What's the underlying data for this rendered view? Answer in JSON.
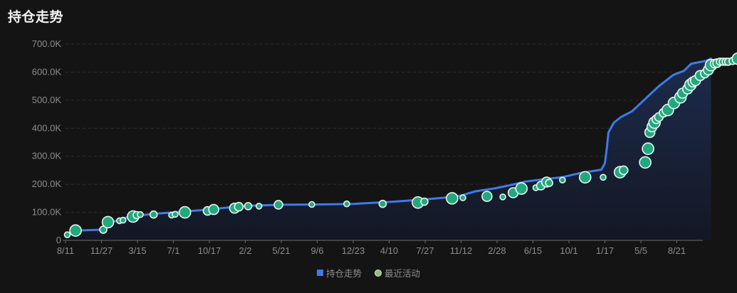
{
  "panel": {
    "title": "持仓走势"
  },
  "legend": {
    "holdings_label": "持仓走势",
    "activity_label": "最近活动"
  },
  "colors": {
    "line": "#3f7ae8",
    "bubble_fill": "#22a87f",
    "bubble_stroke": "#e8f4ec",
    "grid": "#2e2e2e",
    "axis": "#6a6a6a",
    "area_top": "#1b2a4a",
    "background": "#141414"
  },
  "chart_data": {
    "type": "line",
    "y_ticks": [
      "0",
      "100.0K",
      "200.0K",
      "300.0K",
      "400.0K",
      "500.0K",
      "600.0K",
      "700.0K"
    ],
    "ylim": [
      0,
      700000
    ],
    "x_ticks": [
      "8/11",
      "11/27",
      "3/15",
      "7/1",
      "10/17",
      "2/2",
      "5/21",
      "9/6",
      "12/23",
      "4/10",
      "7/27",
      "11/12",
      "2/28",
      "6/15",
      "10/1",
      "1/17",
      "5/5",
      "8/21"
    ],
    "x_tick_index": [
      0,
      1,
      2,
      3,
      4,
      5,
      6,
      7,
      8,
      9,
      10,
      11,
      12,
      13,
      14,
      15,
      16,
      17
    ],
    "x_range_index": [
      0,
      17.85
    ],
    "grid": true,
    "legend_position": "bottom-center",
    "series": [
      {
        "name": "持仓走势",
        "points": [
          [
            0.0,
            20000
          ],
          [
            0.25,
            35000
          ],
          [
            1.0,
            38000
          ],
          [
            1.1,
            38000
          ],
          [
            1.12,
            65000
          ],
          [
            1.5,
            70000
          ],
          [
            1.75,
            85000
          ],
          [
            2.5,
            95000
          ],
          [
            3.0,
            100000
          ],
          [
            3.5,
            105000
          ],
          [
            4.0,
            110000
          ],
          [
            4.5,
            117000
          ],
          [
            5.0,
            123000
          ],
          [
            6.0,
            127000
          ],
          [
            7.0,
            128000
          ],
          [
            8.0,
            130000
          ],
          [
            9.0,
            137000
          ],
          [
            9.9,
            145000
          ],
          [
            10.5,
            152000
          ],
          [
            11.0,
            160000
          ],
          [
            11.4,
            175000
          ],
          [
            11.9,
            185000
          ],
          [
            12.3,
            195000
          ],
          [
            12.8,
            210000
          ],
          [
            13.3,
            218000
          ],
          [
            13.8,
            225000
          ],
          [
            14.3,
            240000
          ],
          [
            14.9,
            252000
          ],
          [
            15.0,
            275000
          ],
          [
            15.05,
            325000
          ],
          [
            15.1,
            385000
          ],
          [
            15.25,
            420000
          ],
          [
            15.45,
            440000
          ],
          [
            15.75,
            460000
          ],
          [
            16.0,
            490000
          ],
          [
            16.25,
            520000
          ],
          [
            16.5,
            550000
          ],
          [
            16.7,
            570000
          ],
          [
            16.9,
            590000
          ],
          [
            17.2,
            605000
          ],
          [
            17.4,
            630000
          ],
          [
            17.6,
            635000
          ],
          [
            17.8,
            640000
          ],
          [
            17.95,
            648000
          ]
        ]
      },
      {
        "name": "最近活动",
        "bubbles": [
          [
            0.05,
            20000,
            4
          ],
          [
            0.28,
            35000,
            8
          ],
          [
            1.05,
            38000,
            5
          ],
          [
            1.18,
            65000,
            8
          ],
          [
            1.5,
            70000,
            4
          ],
          [
            1.6,
            72000,
            4
          ],
          [
            1.88,
            85000,
            8
          ],
          [
            1.98,
            90000,
            5
          ],
          [
            2.08,
            92000,
            4
          ],
          [
            2.45,
            92000,
            5
          ],
          [
            2.95,
            90000,
            4
          ],
          [
            3.05,
            93000,
            4
          ],
          [
            3.32,
            100000,
            8
          ],
          [
            3.95,
            105000,
            6
          ],
          [
            4.12,
            110000,
            7
          ],
          [
            4.7,
            115000,
            7
          ],
          [
            4.82,
            120000,
            6
          ],
          [
            5.08,
            122000,
            5
          ],
          [
            5.38,
            122000,
            4
          ],
          [
            5.92,
            127000,
            6
          ],
          [
            6.85,
            128000,
            4
          ],
          [
            7.82,
            130000,
            4
          ],
          [
            8.82,
            130000,
            5
          ],
          [
            9.8,
            135000,
            8
          ],
          [
            9.98,
            138000,
            5
          ],
          [
            10.75,
            150000,
            8
          ],
          [
            11.05,
            152000,
            4
          ],
          [
            11.72,
            157000,
            7
          ],
          [
            12.16,
            155000,
            4
          ],
          [
            12.45,
            170000,
            7
          ],
          [
            12.68,
            185000,
            8
          ],
          [
            13.08,
            188000,
            4
          ],
          [
            13.22,
            195000,
            6
          ],
          [
            13.38,
            208000,
            7
          ],
          [
            13.45,
            205000,
            5
          ],
          [
            13.82,
            215000,
            4
          ],
          [
            14.45,
            225000,
            8
          ],
          [
            14.95,
            225000,
            4
          ],
          [
            15.42,
            243000,
            8
          ],
          [
            15.52,
            250000,
            6
          ],
          [
            16.12,
            278000,
            8
          ],
          [
            16.2,
            327000,
            8
          ],
          [
            16.25,
            385000,
            7
          ],
          [
            16.31,
            405000,
            7
          ],
          [
            16.38,
            420000,
            8
          ],
          [
            16.43,
            432000,
            6
          ],
          [
            16.5,
            440000,
            6
          ],
          [
            16.63,
            455000,
            6
          ],
          [
            16.75,
            465000,
            8
          ],
          [
            16.92,
            490000,
            8
          ],
          [
            17.1,
            510000,
            8
          ],
          [
            17.16,
            525000,
            7
          ],
          [
            17.3,
            540000,
            7
          ],
          [
            17.38,
            555000,
            8
          ],
          [
            17.45,
            565000,
            7
          ],
          [
            17.52,
            570000,
            7
          ],
          [
            17.65,
            588000,
            7
          ],
          [
            17.78,
            595000,
            6
          ],
          [
            17.88,
            608000,
            7
          ],
          [
            17.95,
            625000,
            8
          ],
          [
            18.05,
            630000,
            6
          ],
          [
            18.12,
            632000,
            6
          ],
          [
            18.2,
            637000,
            5
          ],
          [
            18.28,
            637000,
            5
          ],
          [
            18.36,
            637000,
            5
          ],
          [
            18.43,
            637000,
            5
          ],
          [
            18.55,
            640000,
            5
          ],
          [
            18.7,
            648000,
            8
          ]
        ]
      }
    ]
  }
}
